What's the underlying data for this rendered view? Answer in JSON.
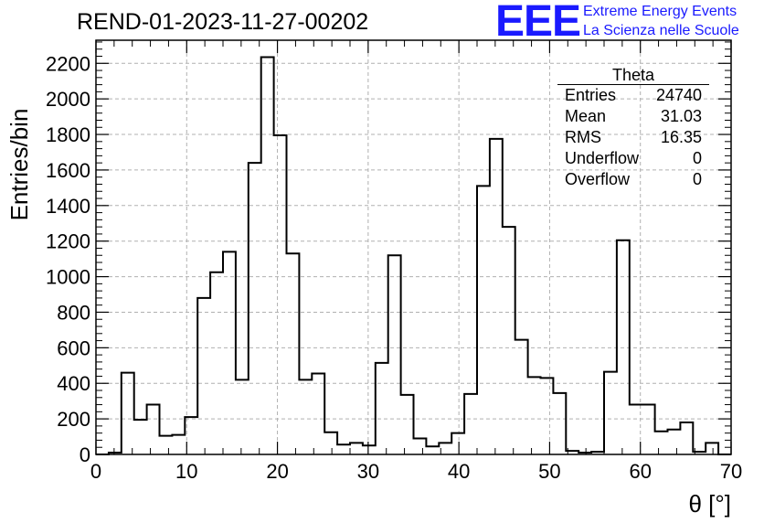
{
  "header": {
    "title": "REND-01-2023-11-27-00202",
    "logo_text": "EEE",
    "logo_line1": "Extreme Energy Events",
    "logo_line2": "La Scienza nelle Scuole",
    "logo_color": "#1a1aff"
  },
  "stats_box": {
    "title": "Theta",
    "rows": [
      {
        "label": "Entries",
        "value": "24740"
      },
      {
        "label": "Mean",
        "value": "31.03"
      },
      {
        "label": "RMS",
        "value": "16.35"
      },
      {
        "label": "Underflow",
        "value": "0"
      },
      {
        "label": "Overflow",
        "value": "0"
      }
    ]
  },
  "chart_data": {
    "type": "bar",
    "style": "step-histogram",
    "title": "REND-01-2023-11-27-00202",
    "xlabel": "θ [°]",
    "ylabel": "Entries/bin",
    "xlim": [
      0,
      70
    ],
    "ylim": [
      0,
      2330
    ],
    "xticks": [
      0,
      10,
      20,
      30,
      40,
      50,
      60,
      70
    ],
    "yticks": [
      0,
      200,
      400,
      600,
      800,
      1000,
      1200,
      1400,
      1600,
      1800,
      2000,
      2200
    ],
    "grid": true,
    "bin_width": 1.4,
    "bin_start": 0,
    "values": [
      0,
      10,
      460,
      195,
      280,
      105,
      110,
      210,
      880,
      1025,
      1140,
      420,
      1640,
      2235,
      1795,
      1130,
      420,
      455,
      125,
      55,
      65,
      50,
      515,
      1120,
      335,
      90,
      45,
      65,
      120,
      340,
      1510,
      1775,
      1280,
      645,
      435,
      430,
      345,
      20,
      10,
      15,
      465,
      1205,
      280,
      280,
      130,
      140,
      180,
      15,
      65,
      0
    ],
    "line_color": "#000000",
    "grid_color": "#b0b0b0"
  }
}
